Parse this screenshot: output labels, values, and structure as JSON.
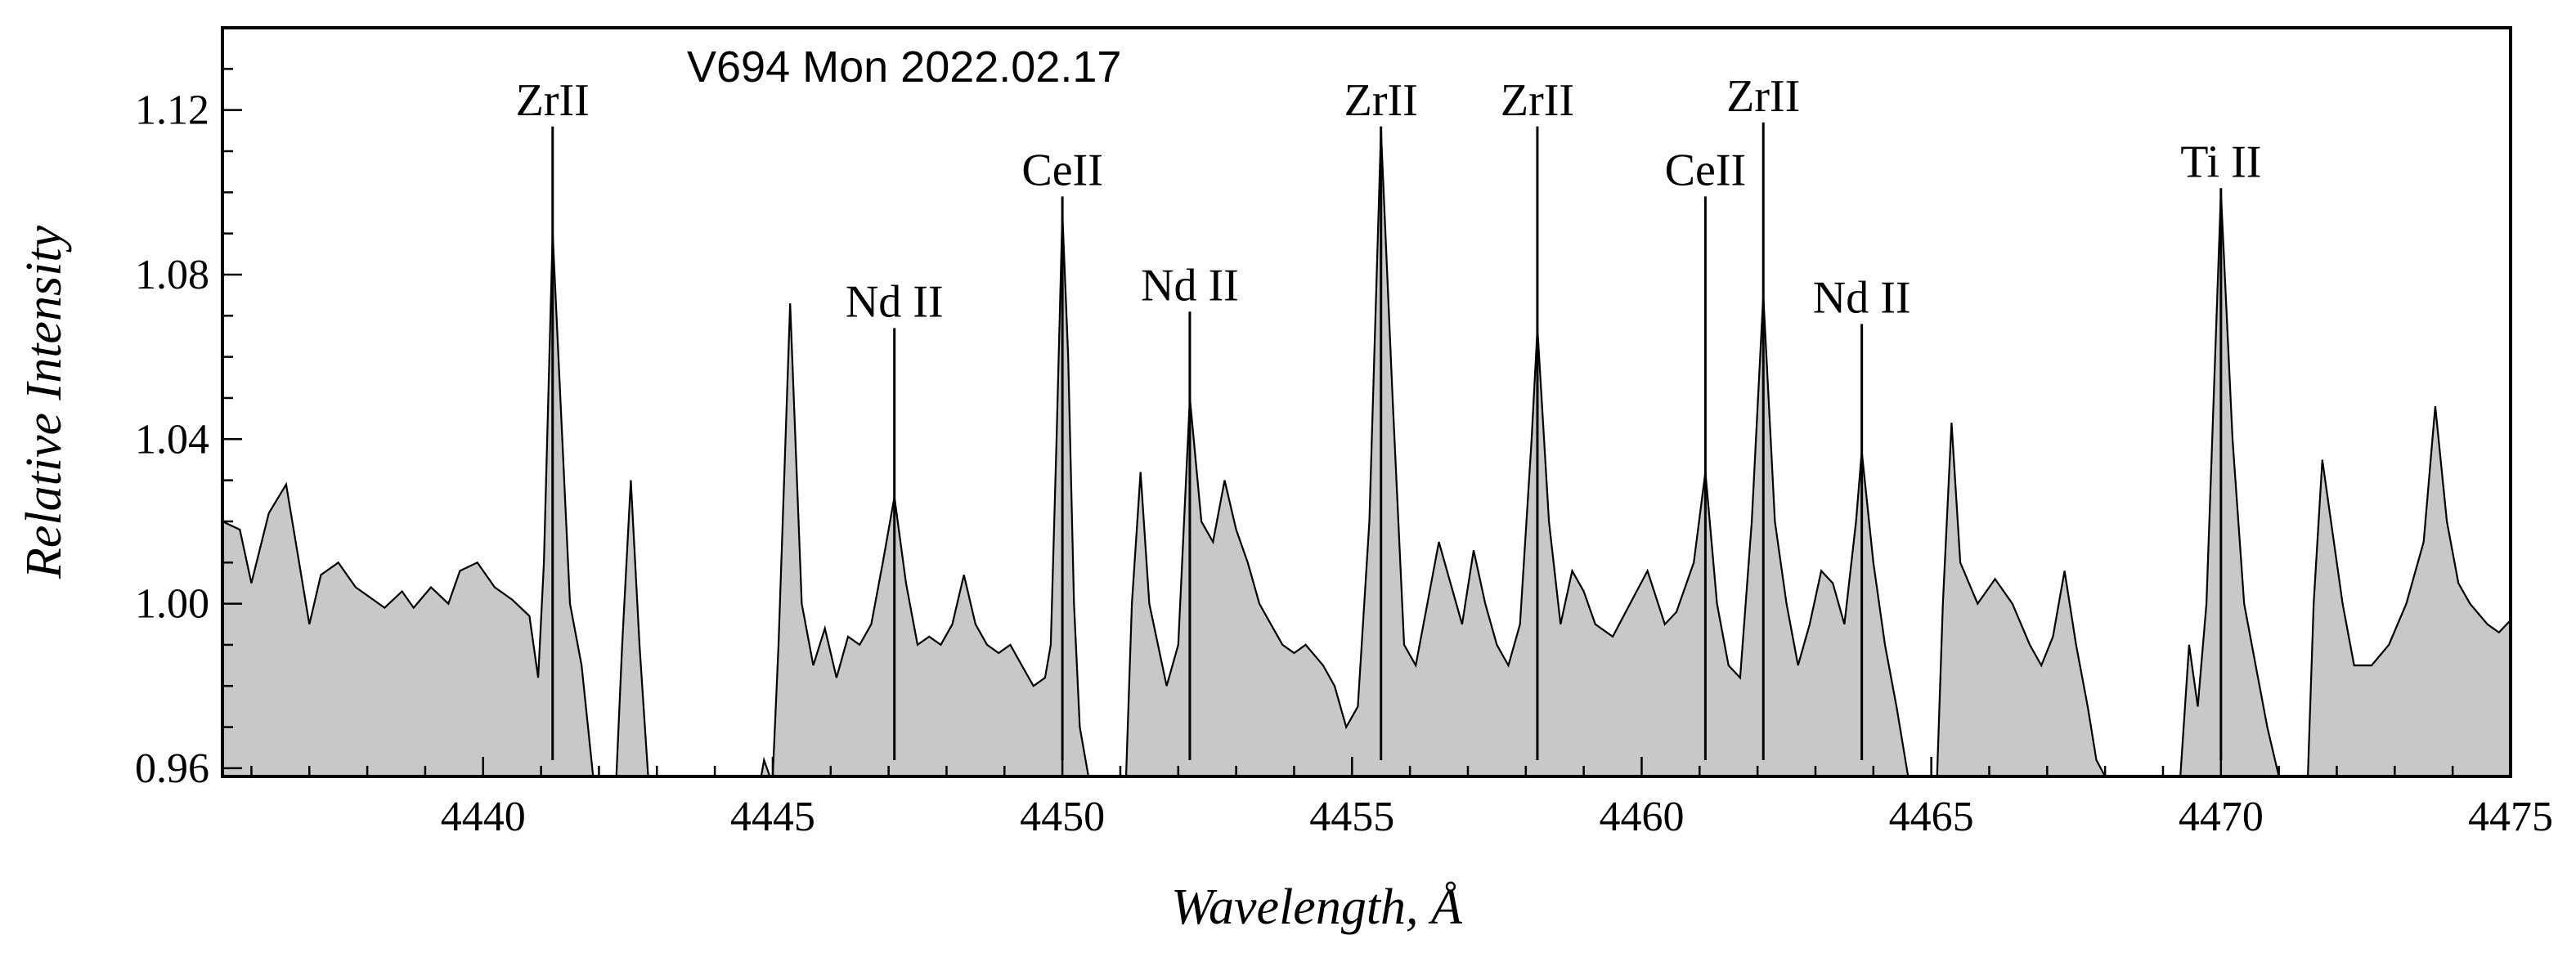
{
  "chart_data": {
    "type": "area",
    "title": "V694 Mon 2022.02.17",
    "xlabel": "Wavelength, Å",
    "ylabel": "Relative Intensity",
    "xlim": [
      4435.5,
      4475
    ],
    "ylim": [
      0.958,
      1.14
    ],
    "xticks": [
      4440,
      4445,
      4450,
      4455,
      4460,
      4465,
      4470,
      4475
    ],
    "yticks": [
      0.96,
      1.0,
      1.04,
      1.08,
      1.12
    ],
    "ytick_labels": [
      "0.96",
      "1.00",
      "1.04",
      "1.08",
      "1.12"
    ],
    "grid": false,
    "fill_color": "#c8c8c8",
    "line_color": "#000000",
    "spectral_lines": [
      {
        "label": "ZrII",
        "wavelength": 4441.2,
        "top": 1.116
      },
      {
        "label": "Nd II",
        "wavelength": 4447.1,
        "top": 1.067
      },
      {
        "label": "CeII",
        "wavelength": 4450.0,
        "top": 1.099
      },
      {
        "label": "Nd II",
        "wavelength": 4452.2,
        "top": 1.071
      },
      {
        "label": "ZrII",
        "wavelength": 4455.5,
        "top": 1.116
      },
      {
        "label": "ZrII",
        "wavelength": 4458.2,
        "top": 1.116
      },
      {
        "label": "CeII",
        "wavelength": 4461.1,
        "top": 1.099
      },
      {
        "label": "ZrII",
        "wavelength": 4462.1,
        "top": 1.117
      },
      {
        "label": "Nd II",
        "wavelength": 4463.8,
        "top": 1.068
      },
      {
        "label": "Ti II",
        "wavelength": 4470.0,
        "top": 1.101
      }
    ],
    "series": [
      {
        "name": "spectrum",
        "segments": [
          [
            [
              4435.5,
              1.02
            ],
            [
              4435.8,
              1.018
            ],
            [
              4436.0,
              1.005
            ],
            [
              4436.3,
              1.022
            ],
            [
              4436.6,
              1.029
            ],
            [
              4436.8,
              1.012
            ],
            [
              4437.0,
              0.995
            ],
            [
              4437.2,
              1.007
            ],
            [
              4437.5,
              1.01
            ],
            [
              4437.8,
              1.004
            ],
            [
              4438.0,
              1.002
            ],
            [
              4438.3,
              0.999
            ],
            [
              4438.6,
              1.003
            ],
            [
              4438.8,
              0.999
            ],
            [
              4439.1,
              1.004
            ],
            [
              4439.4,
              1.0
            ],
            [
              4439.6,
              1.008
            ],
            [
              4439.9,
              1.01
            ],
            [
              4440.2,
              1.004
            ],
            [
              4440.5,
              1.001
            ],
            [
              4440.8,
              0.997
            ],
            [
              4440.95,
              0.982
            ],
            [
              4441.05,
              1.01
            ],
            [
              4441.2,
              1.09
            ],
            [
              4441.35,
              1.045
            ],
            [
              4441.5,
              1.0
            ],
            [
              4441.7,
              0.985
            ],
            [
              4441.9,
              0.958
            ]
          ],
          [
            [
              4442.3,
              0.958
            ],
            [
              4442.4,
              0.99
            ],
            [
              4442.55,
              1.03
            ],
            [
              4442.7,
              0.99
            ],
            [
              4442.85,
              0.958
            ]
          ],
          [
            [
              4444.8,
              0.958
            ],
            [
              4444.85,
              0.962
            ],
            [
              4444.95,
              0.958
            ]
          ],
          [
            [
              4445.0,
              0.958
            ],
            [
              4445.1,
              0.99
            ],
            [
              4445.3,
              1.073
            ],
            [
              4445.5,
              1.0
            ],
            [
              4445.7,
              0.985
            ],
            [
              4445.9,
              0.994
            ],
            [
              4446.1,
              0.982
            ],
            [
              4446.3,
              0.992
            ],
            [
              4446.5,
              0.99
            ],
            [
              4446.7,
              0.995
            ],
            [
              4446.9,
              1.01
            ],
            [
              4447.1,
              1.026
            ],
            [
              4447.3,
              1.005
            ],
            [
              4447.5,
              0.99
            ],
            [
              4447.7,
              0.992
            ],
            [
              4447.9,
              0.99
            ],
            [
              4448.1,
              0.995
            ],
            [
              4448.3,
              1.007
            ],
            [
              4448.5,
              0.995
            ],
            [
              4448.7,
              0.99
            ],
            [
              4448.9,
              0.988
            ],
            [
              4449.1,
              0.99
            ],
            [
              4449.3,
              0.985
            ],
            [
              4449.5,
              0.98
            ],
            [
              4449.7,
              0.982
            ],
            [
              4449.8,
              0.99
            ],
            [
              4449.9,
              1.04
            ],
            [
              4450.0,
              1.095
            ],
            [
              4450.1,
              1.06
            ],
            [
              4450.2,
              1.0
            ],
            [
              4450.3,
              0.97
            ],
            [
              4450.45,
              0.958
            ]
          ],
          [
            [
              4451.1,
              0.958
            ],
            [
              4451.2,
              1.0
            ],
            [
              4451.35,
              1.032
            ],
            [
              4451.5,
              1.0
            ],
            [
              4451.8,
              0.98
            ],
            [
              4452.0,
              0.99
            ],
            [
              4452.2,
              1.05
            ],
            [
              4452.4,
              1.02
            ],
            [
              4452.6,
              1.015
            ],
            [
              4452.8,
              1.03
            ],
            [
              4453.0,
              1.018
            ],
            [
              4453.2,
              1.01
            ],
            [
              4453.4,
              1.0
            ],
            [
              4453.6,
              0.995
            ],
            [
              4453.8,
              0.99
            ],
            [
              4454.0,
              0.988
            ],
            [
              4454.2,
              0.99
            ],
            [
              4454.5,
              0.985
            ],
            [
              4454.7,
              0.98
            ],
            [
              4454.9,
              0.97
            ],
            [
              4455.1,
              0.975
            ],
            [
              4455.3,
              1.02
            ],
            [
              4455.5,
              1.115
            ],
            [
              4455.7,
              1.05
            ],
            [
              4455.9,
              0.99
            ],
            [
              4456.1,
              0.985
            ],
            [
              4456.3,
              1.0
            ],
            [
              4456.5,
              1.015
            ],
            [
              4456.7,
              1.005
            ],
            [
              4456.9,
              0.995
            ],
            [
              4457.1,
              1.013
            ],
            [
              4457.3,
              1.0
            ],
            [
              4457.5,
              0.99
            ],
            [
              4457.7,
              0.985
            ],
            [
              4457.9,
              0.995
            ],
            [
              4458.1,
              1.04
            ],
            [
              4458.2,
              1.067
            ],
            [
              4458.4,
              1.02
            ],
            [
              4458.6,
              0.995
            ],
            [
              4458.8,
              1.008
            ],
            [
              4459.0,
              1.003
            ],
            [
              4459.2,
              0.995
            ],
            [
              4459.5,
              0.992
            ],
            [
              4459.8,
              1.0
            ],
            [
              4460.1,
              1.008
            ],
            [
              4460.4,
              0.995
            ],
            [
              4460.6,
              0.998
            ],
            [
              4460.9,
              1.01
            ],
            [
              4461.1,
              1.032
            ],
            [
              4461.3,
              1.0
            ],
            [
              4461.5,
              0.985
            ],
            [
              4461.7,
              0.982
            ],
            [
              4461.9,
              1.02
            ],
            [
              4462.1,
              1.075
            ],
            [
              4462.3,
              1.02
            ],
            [
              4462.5,
              1.0
            ],
            [
              4462.7,
              0.985
            ],
            [
              4462.9,
              0.995
            ],
            [
              4463.1,
              1.008
            ],
            [
              4463.3,
              1.005
            ],
            [
              4463.5,
              0.995
            ],
            [
              4463.7,
              1.02
            ],
            [
              4463.8,
              1.037
            ],
            [
              4464.0,
              1.01
            ],
            [
              4464.2,
              0.99
            ],
            [
              4464.4,
              0.975
            ],
            [
              4464.6,
              0.958
            ]
          ],
          [
            [
              4465.1,
              0.958
            ],
            [
              4465.2,
              1.0
            ],
            [
              4465.35,
              1.044
            ],
            [
              4465.5,
              1.01
            ],
            [
              4465.8,
              1.0
            ],
            [
              4466.1,
              1.006
            ],
            [
              4466.4,
              1.0
            ],
            [
              4466.7,
              0.99
            ],
            [
              4466.9,
              0.985
            ],
            [
              4467.1,
              0.992
            ],
            [
              4467.3,
              1.008
            ],
            [
              4467.5,
              0.99
            ],
            [
              4467.7,
              0.975
            ],
            [
              4467.85,
              0.962
            ],
            [
              4468.0,
              0.958
            ]
          ],
          [
            [
              4469.3,
              0.958
            ],
            [
              4469.45,
              0.99
            ],
            [
              4469.6,
              0.975
            ],
            [
              4469.75,
              1.0
            ],
            [
              4470.0,
              1.1
            ],
            [
              4470.2,
              1.04
            ],
            [
              4470.4,
              1.0
            ],
            [
              4470.6,
              0.985
            ],
            [
              4470.8,
              0.97
            ],
            [
              4471.0,
              0.958
            ]
          ],
          [
            [
              4471.5,
              0.958
            ],
            [
              4471.6,
              1.0
            ],
            [
              4471.75,
              1.035
            ],
            [
              4471.9,
              1.02
            ],
            [
              4472.1,
              1.0
            ],
            [
              4472.3,
              0.985
            ],
            [
              4472.6,
              0.985
            ],
            [
              4472.9,
              0.99
            ],
            [
              4473.2,
              1.0
            ],
            [
              4473.5,
              1.015
            ],
            [
              4473.7,
              1.048
            ],
            [
              4473.9,
              1.02
            ],
            [
              4474.1,
              1.005
            ],
            [
              4474.3,
              1.0
            ],
            [
              4474.6,
              0.995
            ],
            [
              4474.8,
              0.993
            ],
            [
              4475.0,
              0.996
            ]
          ]
        ]
      }
    ]
  }
}
